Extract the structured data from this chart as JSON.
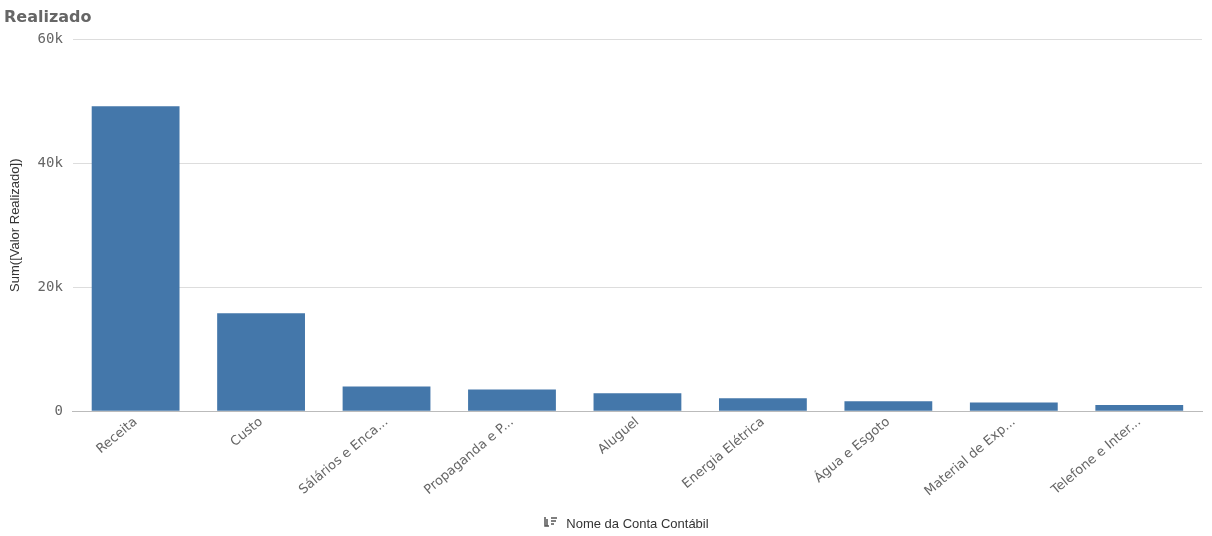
{
  "chart_data": {
    "type": "bar",
    "title": "Realizado",
    "ylabel": "Sum([Valor Realizado])",
    "xlabel": "Nome da Conta Contábil",
    "categories": [
      "Receita",
      "Custo",
      "Sálários e Enca...",
      "Propaganda e P...",
      "Aluguel",
      "Energia Elétrica",
      "Água e Esgoto",
      "Material de Exp...",
      "Telefone e Inter..."
    ],
    "values": [
      49200,
      15800,
      4000,
      3500,
      2900,
      2100,
      1600,
      1400,
      1000
    ],
    "color": "#4477aa",
    "ylim": [
      0,
      60000
    ],
    "yticks": [
      {
        "value": 0,
        "label": "0"
      },
      {
        "value": 20000,
        "label": "20k"
      },
      {
        "value": 40000,
        "label": "40k"
      },
      {
        "value": 60000,
        "label": "60k"
      }
    ],
    "grid": "y",
    "legend": false
  }
}
